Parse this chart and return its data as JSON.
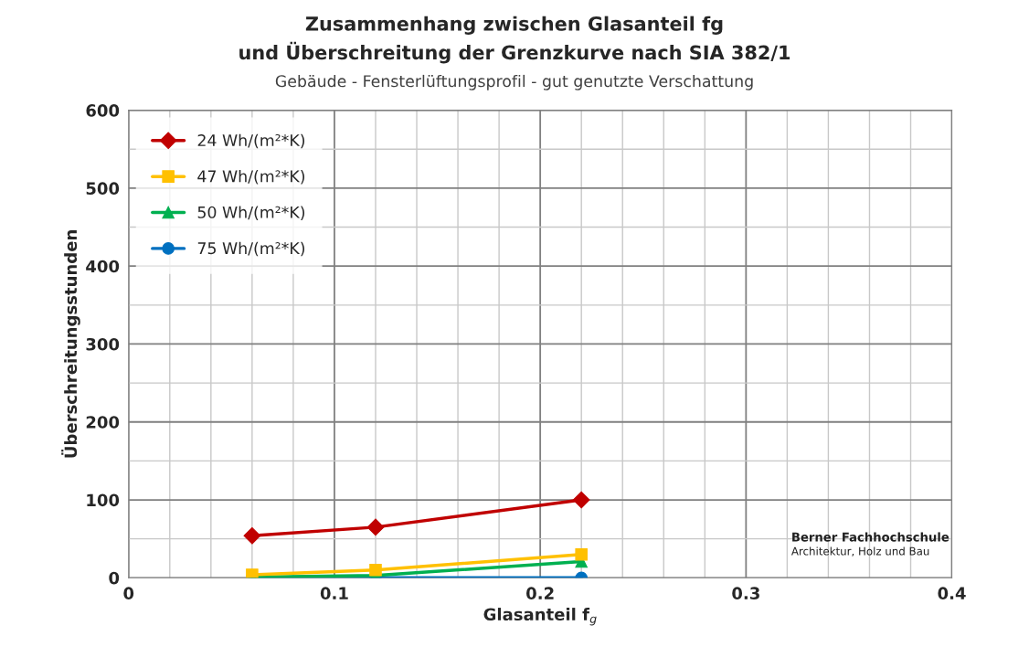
{
  "chart_data": {
    "type": "line",
    "title": "Zusammenhang zwischen Glasanteil fg\nund Überschreitung der Grenzkurve nach SIA 382/1",
    "subtitle": "Gebäude - Fensterlüftungsprofil - gut genutzte Verschattung",
    "xlabel": "Glasanteil f$_{g}$",
    "ylabel": "Überschreitungsstunden",
    "x": [
      0.06,
      0.12,
      0.22
    ],
    "series": [
      {
        "name": "24 Wh/(m²*K)",
        "color": "#c00000",
        "marker": "diamond",
        "values": [
          54,
          65,
          100
        ]
      },
      {
        "name": "47 Wh/(m²*K)",
        "color": "#ffc000",
        "marker": "square",
        "values": [
          4,
          10,
          30
        ]
      },
      {
        "name": "50 Wh/(m²*K)",
        "color": "#00b050",
        "marker": "triangle",
        "values": [
          1,
          3,
          21
        ]
      },
      {
        "name": "75 Wh/(m²*K)",
        "color": "#0070c0",
        "marker": "circle",
        "values": [
          0,
          0,
          0
        ]
      }
    ],
    "xlim": [
      0,
      0.4
    ],
    "xticks": [
      0,
      0.1,
      0.2,
      0.3,
      0.4
    ],
    "ylim": [
      0,
      600
    ],
    "yticks": [
      0,
      100,
      200,
      300,
      400,
      500,
      600
    ],
    "grid": true,
    "legend": "top left",
    "line_style": "solid",
    "annotations": [
      "Berner Fachhochschule",
      "Architektur, Holz und Bau"
    ]
  }
}
